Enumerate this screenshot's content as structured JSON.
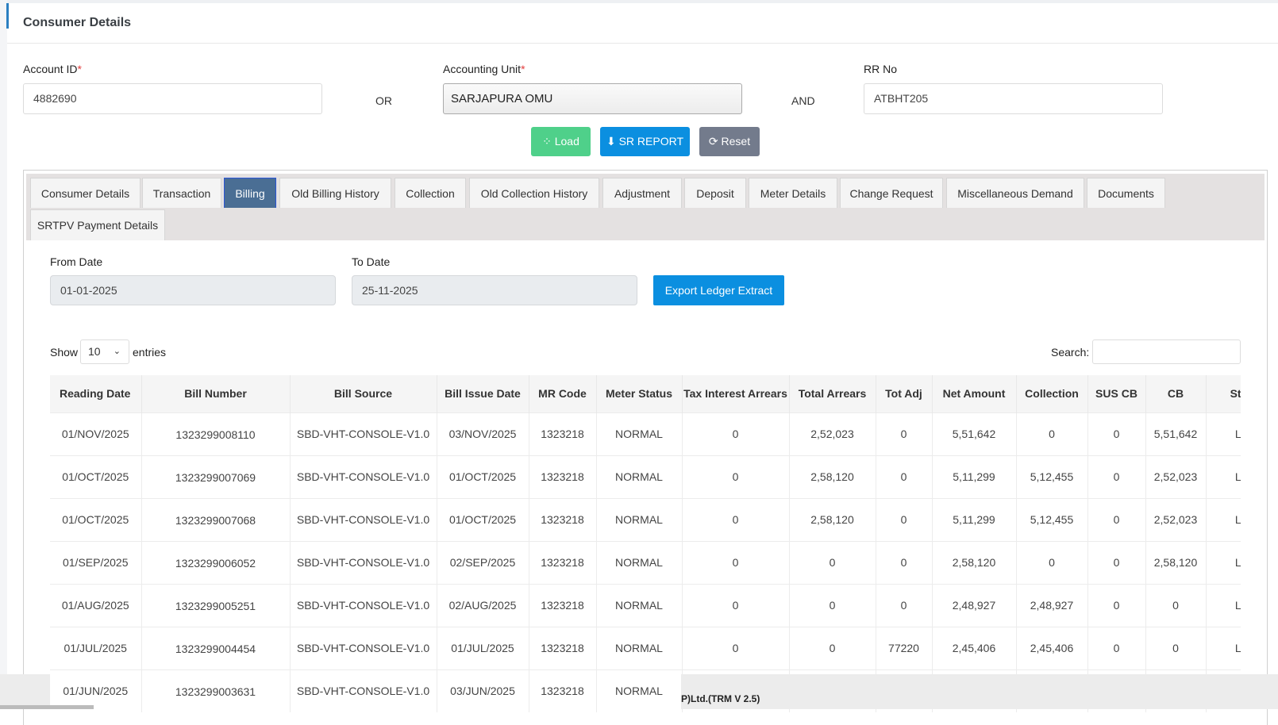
{
  "page": {
    "title": "Consumer Details"
  },
  "form": {
    "account_id_label": "Account ID",
    "account_id_value": "4882690",
    "required_mark": "*",
    "or_label": "OR",
    "accounting_unit_label": "Accounting Unit",
    "accounting_unit_value": "SARJAPURA OMU",
    "and_label": "AND",
    "rr_no_label": "RR No",
    "rr_no_value": "ATBHT205"
  },
  "buttons": {
    "load": "Load",
    "sr_report": "SR REPORT",
    "reset": "Reset"
  },
  "colors": {
    "load": "#4fd08a",
    "sr_report": "#0b8fe0",
    "reset": "#737b8c",
    "active_tab": "#4a6e94"
  },
  "tabs": [
    {
      "label": "Consumer Details"
    },
    {
      "label": "Transaction"
    },
    {
      "label": "Billing",
      "active": true
    },
    {
      "label": "Old Billing History"
    },
    {
      "label": "Collection"
    },
    {
      "label": "Old Collection History"
    },
    {
      "label": "Adjustment"
    },
    {
      "label": "Deposit"
    },
    {
      "label": "Meter Details"
    },
    {
      "label": "Change Request"
    },
    {
      "label": "Miscellaneous Demand"
    },
    {
      "label": "Documents"
    },
    {
      "label": "SRTPV Payment Details"
    }
  ],
  "billing": {
    "from_date_label": "From Date",
    "from_date_value": "01-01-2025",
    "to_date_label": "To Date",
    "to_date_value": "25-11-2025",
    "export_label": "Export Ledger Extract",
    "show_label": "Show",
    "entries_value": "10",
    "entries_label": "entries",
    "search_label": "Search:",
    "search_value": "",
    "columns": [
      "Reading Date",
      "Bill Number",
      "Bill Source",
      "Bill Issue Date",
      "MR Code",
      "Meter Status",
      "Tax Interest Arrears",
      "Total Arrears",
      "Tot Adj",
      "Net Amount",
      "Collection",
      "SUS CB",
      "CB",
      "Status"
    ],
    "rows": [
      [
        "01/NOV/2025",
        "1323299008110",
        "SBD-VHT-CONSOLE-V1.0",
        "03/NOV/2025",
        "1323218",
        "NORMAL",
        "0",
        "2,52,023",
        "0",
        "5,51,642",
        "0",
        "0",
        "5,51,642",
        "LIVE"
      ],
      [
        "01/OCT/2025",
        "1323299007069",
        "SBD-VHT-CONSOLE-V1.0",
        "01/OCT/2025",
        "1323218",
        "NORMAL",
        "0",
        "2,58,120",
        "0",
        "5,11,299",
        "5,12,455",
        "0",
        "2,52,023",
        "LIVE"
      ],
      [
        "01/OCT/2025",
        "1323299007068",
        "SBD-VHT-CONSOLE-V1.0",
        "01/OCT/2025",
        "1323218",
        "NORMAL",
        "0",
        "2,58,120",
        "0",
        "5,11,299",
        "5,12,455",
        "0",
        "2,52,023",
        "LIVE"
      ],
      [
        "01/SEP/2025",
        "1323299006052",
        "SBD-VHT-CONSOLE-V1.0",
        "02/SEP/2025",
        "1323218",
        "NORMAL",
        "0",
        "0",
        "0",
        "2,58,120",
        "0",
        "0",
        "2,58,120",
        "LIVE"
      ],
      [
        "01/AUG/2025",
        "1323299005251",
        "SBD-VHT-CONSOLE-V1.0",
        "02/AUG/2025",
        "1323218",
        "NORMAL",
        "0",
        "0",
        "0",
        "2,48,927",
        "2,48,927",
        "0",
        "0",
        "LIVE"
      ],
      [
        "01/JUL/2025",
        "1323299004454",
        "SBD-VHT-CONSOLE-V1.0",
        "01/JUL/2025",
        "1323218",
        "NORMAL",
        "0",
        "0",
        "77220",
        "2,45,406",
        "2,45,406",
        "0",
        "0",
        "LIVE"
      ],
      [
        "01/JUN/2025",
        "1323299003631",
        "SBD-VHT-CONSOLE-V1.0",
        "03/JUN/2025",
        "1323218",
        "NORMAL",
        "",
        "",
        "",
        "",
        "",
        "",
        "",
        ""
      ]
    ]
  },
  "footer": {
    "text": "P)Ltd.(TRM V 2.5)"
  }
}
